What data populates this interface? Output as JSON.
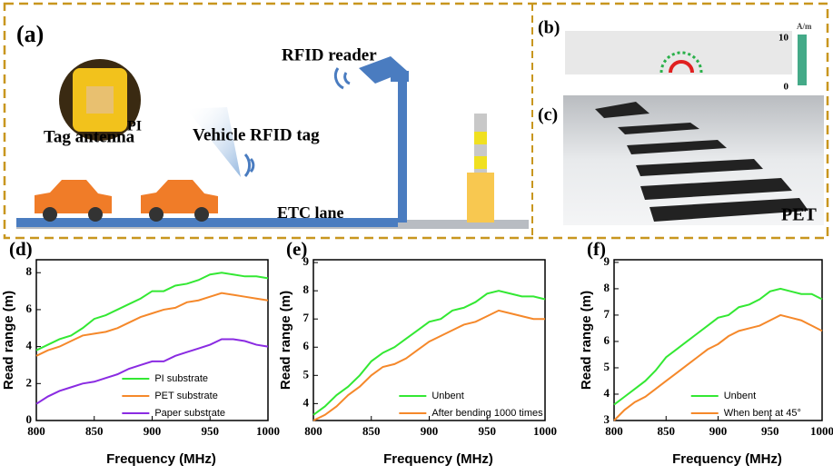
{
  "figure_panels": {
    "a": {
      "label": "(a)",
      "reader": "RFID reader",
      "pi": "PI",
      "tag_antenna": "Tag antenna",
      "vehicle_tag": "Vehicle RFID tag",
      "lane": "ETC lane"
    },
    "b": {
      "label": "(b)",
      "unit": "A/m",
      "max": "10",
      "min": "0"
    },
    "c": {
      "label": "(c)",
      "material": "PET"
    }
  },
  "chart_data": [
    {
      "type": "line",
      "label": "(d)",
      "xlabel": "Frequency (MHz)",
      "ylabel": "Read range (m)",
      "x": [
        800,
        810,
        820,
        830,
        840,
        850,
        860,
        870,
        880,
        890,
        900,
        910,
        920,
        930,
        940,
        950,
        960,
        970,
        980,
        990,
        1000
      ],
      "xlim": [
        800,
        1000
      ],
      "xticks": [
        800,
        850,
        900,
        950,
        1000
      ],
      "ylim": [
        0,
        8.7
      ],
      "yticks": [
        0,
        2,
        4,
        6,
        8
      ],
      "legend": "lower right",
      "series": [
        {
          "name": "PI substrate",
          "color": "#33e833",
          "values": [
            3.8,
            4.1,
            4.4,
            4.6,
            5.0,
            5.5,
            5.7,
            6.0,
            6.3,
            6.6,
            7.0,
            7.0,
            7.3,
            7.4,
            7.6,
            7.9,
            8.0,
            7.9,
            7.8,
            7.8,
            7.7
          ]
        },
        {
          "name": "PET substrate",
          "color": "#f5882a",
          "values": [
            3.5,
            3.8,
            4.0,
            4.3,
            4.6,
            4.7,
            4.8,
            5.0,
            5.3,
            5.6,
            5.8,
            6.0,
            6.1,
            6.4,
            6.5,
            6.7,
            6.9,
            6.8,
            6.7,
            6.6,
            6.5
          ]
        },
        {
          "name": "Paper substrate",
          "color": "#8a2be2",
          "values": [
            0.9,
            1.3,
            1.6,
            1.8,
            2.0,
            2.1,
            2.3,
            2.5,
            2.8,
            3.0,
            3.2,
            3.2,
            3.5,
            3.7,
            3.9,
            4.1,
            4.4,
            4.4,
            4.3,
            4.1,
            4.0
          ]
        }
      ]
    },
    {
      "type": "line",
      "label": "(e)",
      "xlabel": "Frequency (MHz)",
      "ylabel": "Read range (m)",
      "x": [
        800,
        810,
        820,
        830,
        840,
        850,
        860,
        870,
        880,
        890,
        900,
        910,
        920,
        930,
        940,
        950,
        960,
        970,
        980,
        990,
        1000
      ],
      "xlim": [
        800,
        1000
      ],
      "xticks": [
        800,
        850,
        900,
        950,
        1000
      ],
      "ylim": [
        3.4,
        9.1
      ],
      "yticks": [
        4,
        5,
        6,
        7,
        8,
        9
      ],
      "legend": "lower right",
      "series": [
        {
          "name": "Unbent",
          "color": "#33e833",
          "values": [
            3.6,
            3.9,
            4.3,
            4.6,
            5.0,
            5.5,
            5.8,
            6.0,
            6.3,
            6.6,
            6.9,
            7.0,
            7.3,
            7.4,
            7.6,
            7.9,
            8.0,
            7.9,
            7.8,
            7.8,
            7.7
          ]
        },
        {
          "name": "After bending 1000 times",
          "color": "#f5882a",
          "values": [
            3.4,
            3.6,
            3.9,
            4.3,
            4.6,
            5.0,
            5.3,
            5.4,
            5.6,
            5.9,
            6.2,
            6.4,
            6.6,
            6.8,
            6.9,
            7.1,
            7.3,
            7.2,
            7.1,
            7.0,
            7.0
          ]
        }
      ]
    },
    {
      "type": "line",
      "label": "(f)",
      "xlabel": "Frequency (MHz)",
      "ylabel": "Read range (m)",
      "x": [
        800,
        810,
        820,
        830,
        840,
        850,
        860,
        870,
        880,
        890,
        900,
        910,
        920,
        930,
        940,
        950,
        960,
        970,
        980,
        990,
        1000
      ],
      "xlim": [
        800,
        1000
      ],
      "xticks": [
        800,
        850,
        900,
        950,
        1000
      ],
      "ylim": [
        3,
        9.1
      ],
      "yticks": [
        3,
        4,
        5,
        6,
        7,
        8,
        9
      ],
      "legend": "lower right",
      "series": [
        {
          "name": "Unbent",
          "color": "#33e833",
          "values": [
            3.6,
            3.9,
            4.2,
            4.5,
            4.9,
            5.4,
            5.7,
            6.0,
            6.3,
            6.6,
            6.9,
            7.0,
            7.3,
            7.4,
            7.6,
            7.9,
            8.0,
            7.9,
            7.8,
            7.8,
            7.6
          ]
        },
        {
          "name": "When bent at 45°",
          "color": "#f5882a",
          "values": [
            3.0,
            3.4,
            3.7,
            3.9,
            4.2,
            4.5,
            4.8,
            5.1,
            5.4,
            5.7,
            5.9,
            6.2,
            6.4,
            6.5,
            6.6,
            6.8,
            7.0,
            6.9,
            6.8,
            6.6,
            6.4
          ]
        }
      ]
    }
  ]
}
